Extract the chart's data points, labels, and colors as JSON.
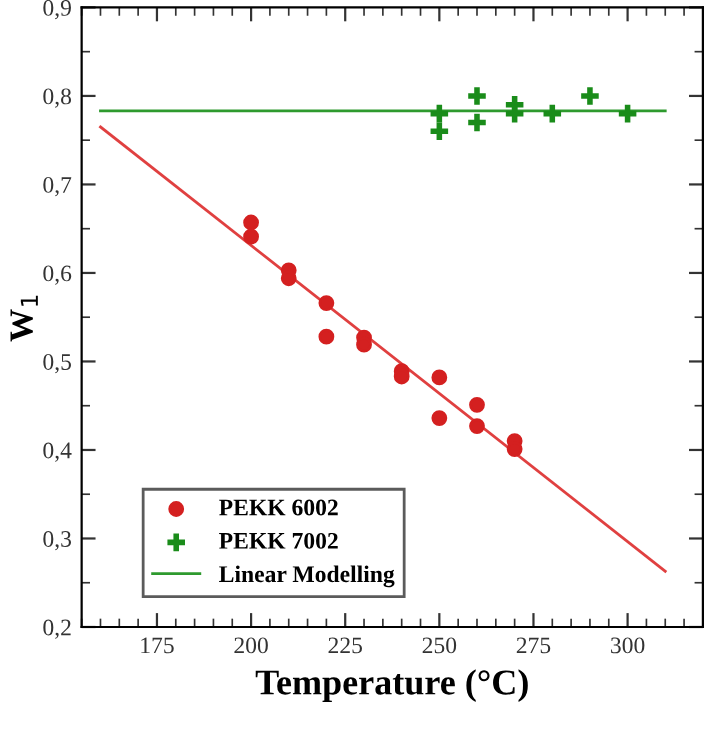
{
  "chart_data": {
    "type": "scatter",
    "xlabel": "Temperature (°C)",
    "ylabel": "W$_{1}$",
    "xlim": [
      155,
      320
    ],
    "ylim": [
      0.2,
      0.9
    ],
    "xticks": [
      175,
      200,
      225,
      250,
      275,
      300
    ],
    "yticks": [
      {
        "value": 0.2,
        "label": "0,2"
      },
      {
        "value": 0.3,
        "label": "0,3"
      },
      {
        "value": 0.4,
        "label": "0,4"
      },
      {
        "value": 0.5,
        "label": "0,5"
      },
      {
        "value": 0.6,
        "label": "0,6"
      },
      {
        "value": 0.7,
        "label": "0,7"
      },
      {
        "value": 0.8,
        "label": "0,8"
      },
      {
        "value": 0.9,
        "label": "0,9"
      }
    ],
    "grid": false,
    "legend": "bottom left",
    "series": [
      {
        "name": "PEKK 6002",
        "marker": "circle",
        "color": "#d42020",
        "x": [
          200,
          200,
          210,
          210,
          220,
          220,
          230,
          230,
          240,
          240,
          250,
          250,
          260,
          260,
          270,
          270
        ],
        "values": [
          0.657,
          0.641,
          0.603,
          0.594,
          0.566,
          0.528,
          0.527,
          0.519,
          0.489,
          0.483,
          0.482,
          0.436,
          0.451,
          0.427,
          0.41,
          0.401
        ]
      },
      {
        "name": "PEKK 7002",
        "marker": "cross",
        "color": "#1a8c1a",
        "x": [
          250,
          250,
          260,
          260,
          270,
          270,
          280,
          290,
          300
        ],
        "values": [
          0.78,
          0.76,
          0.8,
          0.77,
          0.79,
          0.78,
          0.78,
          0.8,
          0.78
        ]
      },
      {
        "name": "Linear Modelling",
        "type": "line",
        "color": "#2e9a2e",
        "x": [
          160,
          310
        ],
        "values": [
          0.783,
          0.783
        ]
      },
      {
        "type": "line",
        "color": "#e04040",
        "x": [
          160,
          310
        ],
        "values": [
          0.765,
          0.263
        ]
      }
    ]
  }
}
